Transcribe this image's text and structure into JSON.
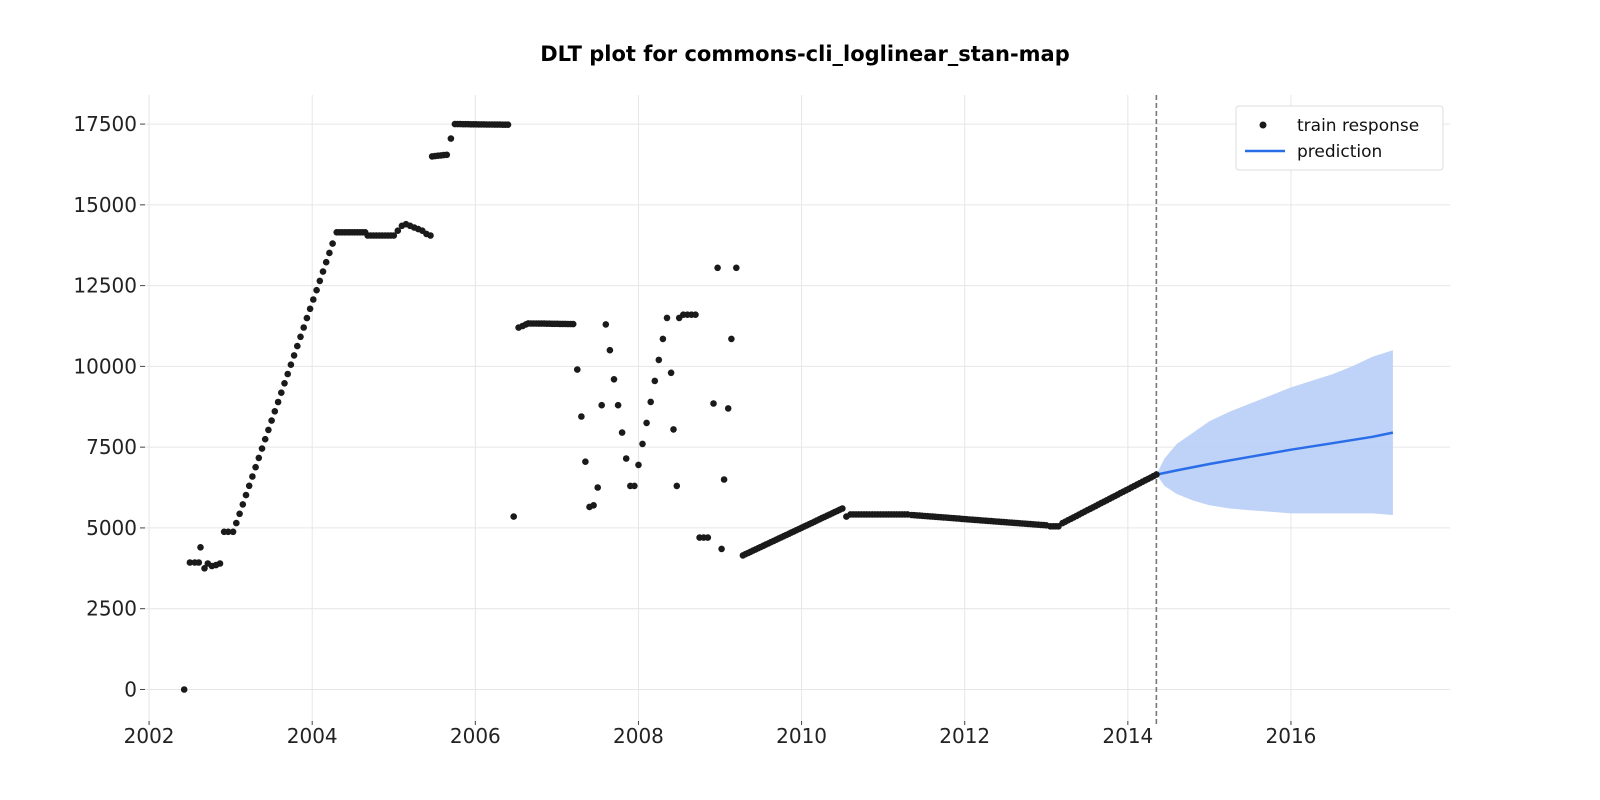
{
  "chart_data": {
    "type": "scatter",
    "title": "DLT plot for commons-cli_loglinear_stan-map",
    "xlabel": "",
    "ylabel": "",
    "x_ticks": [
      "2002",
      "2004",
      "2006",
      "2008",
      "2010",
      "2012",
      "2014",
      "2016"
    ],
    "y_ticks": [
      "0",
      "2500",
      "5000",
      "7500",
      "10000",
      "12500",
      "15000",
      "17500"
    ],
    "xlim": [
      2001.95,
      2017.95
    ],
    "ylim": [
      -1100,
      18400
    ],
    "grid": true,
    "legend_position": "top-right",
    "train_end": 2014.35,
    "colors": {
      "points": "#1a1a1a",
      "prediction": "#2a6de8",
      "band": "#bcd0f7",
      "cutoff": "#777777"
    },
    "series": [
      {
        "name": "train response",
        "kind": "scatter",
        "segments": [
          {
            "x": [
              2002.43
            ],
            "y": [
              0
            ]
          },
          {
            "x": [
              2002.5,
              2002.56,
              2002.61
            ],
            "y": [
              3930,
              3930,
              3930
            ]
          },
          {
            "x": [
              2002.63
            ],
            "y": [
              4400
            ]
          },
          {
            "x": [
              2002.68,
              2002.72,
              2002.77,
              2002.82,
              2002.87
            ],
            "y": [
              3750,
              3900,
              3820,
              3850,
              3900
            ]
          },
          {
            "x": [
              2002.92,
              2002.97,
              2003.03
            ],
            "y": [
              4880,
              4880,
              4880
            ]
          },
          {
            "x_start": 2003.07,
            "x_end": 2004.25,
            "y_start": 5150,
            "y_end": 13800,
            "n": 31
          },
          {
            "x_start": 2004.3,
            "x_end": 2004.65,
            "y_start": 14150,
            "y_end": 14150,
            "n": 12
          },
          {
            "x_start": 2004.68,
            "x_end": 2005.0,
            "y_start": 14050,
            "y_end": 14050,
            "n": 10
          },
          {
            "x": [
              2005.05,
              2005.1,
              2005.15,
              2005.2,
              2005.25,
              2005.3,
              2005.35,
              2005.4,
              2005.45
            ],
            "y": [
              14200,
              14350,
              14400,
              14350,
              14300,
              14250,
              14200,
              14100,
              14050
            ]
          },
          {
            "x_start": 2005.47,
            "x_end": 2005.65,
            "y_start": 16500,
            "y_end": 16550,
            "n": 6
          },
          {
            "x": [
              2005.7
            ],
            "y": [
              17050
            ]
          },
          {
            "x_start": 2005.75,
            "x_end": 2006.4,
            "y_start": 17500,
            "y_end": 17480,
            "n": 21
          },
          {
            "x": [
              2006.47
            ],
            "y": [
              5350
            ]
          },
          {
            "x": [
              2006.53,
              2006.58,
              2006.62
            ],
            "y": [
              11200,
              11250,
              11300
            ]
          },
          {
            "x_start": 2006.65,
            "x_end": 2007.2,
            "y_start": 11330,
            "y_end": 11310,
            "n": 18
          },
          {
            "x": [
              2007.25,
              2007.3,
              2007.35,
              2007.4,
              2007.45,
              2007.5,
              2007.55,
              2007.6,
              2007.65,
              2007.7,
              2007.75,
              2007.8,
              2007.85,
              2007.9,
              2007.95,
              2008.0,
              2008.05,
              2008.1,
              2008.15,
              2008.2,
              2008.25,
              2008.3,
              2008.35,
              2008.4
            ],
            "y": [
              9900,
              8450,
              7050,
              5650,
              5700,
              6250,
              8800,
              11300,
              10500,
              9600,
              8800,
              7950,
              7150,
              6300,
              6300,
              6950,
              7600,
              8250,
              8900,
              9550,
              10200,
              10850,
              11500,
              9800
            ]
          },
          {
            "x": [
              2008.43
            ],
            "y": [
              8050
            ]
          },
          {
            "x": [
              2008.47
            ],
            "y": [
              6300
            ]
          },
          {
            "x": [
              2008.5,
              2008.55,
              2008.6,
              2008.65,
              2008.7
            ],
            "y": [
              11500,
              11600,
              11600,
              11600,
              11600
            ]
          },
          {
            "x": [
              2008.75,
              2008.8,
              2008.85
            ],
            "y": [
              4700,
              4700,
              4700
            ]
          },
          {
            "x": [
              2008.92
            ],
            "y": [
              8850
            ]
          },
          {
            "x": [
              2008.97
            ],
            "y": [
              13050
            ]
          },
          {
            "x": [
              2009.02
            ],
            "y": [
              4350
            ]
          },
          {
            "x": [
              2009.05
            ],
            "y": [
              6500
            ]
          },
          {
            "x": [
              2009.1
            ],
            "y": [
              8700
            ]
          },
          {
            "x": [
              2009.14
            ],
            "y": [
              10850
            ]
          },
          {
            "x": [
              2009.2
            ],
            "y": [
              13050
            ]
          },
          {
            "x_start": 2009.28,
            "x_end": 2010.5,
            "y_start": 4150,
            "y_end": 5600,
            "n": 40
          },
          {
            "x": [
              2010.55
            ],
            "y": [
              5350
            ]
          },
          {
            "x_start": 2010.6,
            "x_end": 2011.3,
            "y_start": 5420,
            "y_end": 5420,
            "n": 22
          },
          {
            "x_start": 2011.35,
            "x_end": 2013.0,
            "y_start": 5400,
            "y_end": 5080,
            "n": 52
          },
          {
            "x_start": 2013.05,
            "x_end": 2013.15,
            "y_start": 5050,
            "y_end": 5050,
            "n": 4
          },
          {
            "x_start": 2013.2,
            "x_end": 2014.35,
            "y_start": 5150,
            "y_end": 6650,
            "n": 35
          }
        ]
      },
      {
        "name": "prediction",
        "kind": "line",
        "x": [
          2014.35,
          2014.6,
          2015.0,
          2015.5,
          2016.0,
          2016.5,
          2017.0,
          2017.25
        ],
        "y": [
          6650,
          6780,
          6980,
          7200,
          7420,
          7620,
          7820,
          7950
        ]
      },
      {
        "name": "prediction interval",
        "kind": "band",
        "x": [
          2014.35,
          2014.45,
          2014.6,
          2014.8,
          2015.0,
          2015.25,
          2015.5,
          2015.75,
          2016.0,
          2016.25,
          2016.5,
          2016.75,
          2017.0,
          2017.25
        ],
        "upper": [
          6650,
          7150,
          7600,
          7950,
          8300,
          8600,
          8850,
          9100,
          9350,
          9550,
          9750,
          10000,
          10300,
          10500
        ],
        "lower": [
          6650,
          6300,
          6050,
          5850,
          5700,
          5600,
          5550,
          5500,
          5450,
          5450,
          5450,
          5450,
          5450,
          5400
        ]
      }
    ]
  }
}
